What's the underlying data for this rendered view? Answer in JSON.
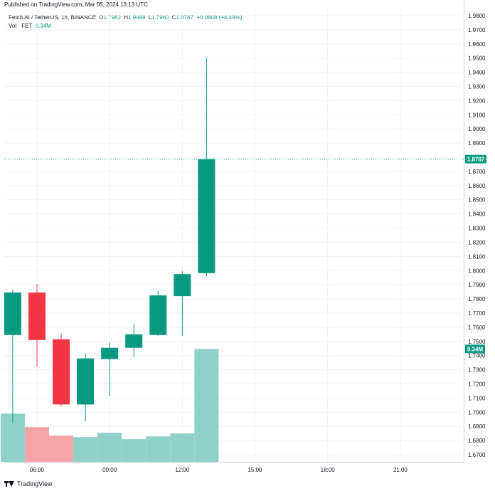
{
  "header": {
    "published": "Published on TradingView.com, Mar 05, 2024 13:13 UTC"
  },
  "legend": {
    "symbol": "Fetch.AI / TetherUS, 1h, BINANCE",
    "open_label": "O",
    "open_value": "1.7982",
    "high_label": "H",
    "high_value": "1.9499",
    "low_label": "L",
    "low_value": "1.7960",
    "close_label": "C",
    "close_value": "1.8787",
    "change": "+0.0808 (+4.49%)",
    "vol_label": "Vol · FET",
    "vol_value": "9.34M"
  },
  "footer": {
    "brand": "TradingView"
  },
  "colors": {
    "up": "#089981",
    "down": "#f23645",
    "vol_up": "#8fd1c9",
    "vol_down": "#f7a4a9",
    "grid": "#f0f3fa",
    "text": "#131722"
  },
  "chart_data": {
    "type": "candlestick",
    "ylim": [
      1.665,
      1.985
    ],
    "y_ticks": [
      "1.6700",
      "1.6800",
      "1.6900",
      "1.7000",
      "1.7100",
      "1.7200",
      "1.7300",
      "1.7400",
      "1.7500",
      "1.7600",
      "1.7700",
      "1.7800",
      "1.7900",
      "1.8000",
      "1.8100",
      "1.8200",
      "1.8300",
      "1.8400",
      "1.8500",
      "1.8600",
      "1.8700",
      "1.8800",
      "1.8900",
      "1.9000",
      "1.9100",
      "1.9200",
      "1.9300",
      "1.9400",
      "1.9500",
      "1.9600",
      "1.9700",
      "1.9800"
    ],
    "x_ticks": [
      "06:00",
      "09:00",
      "12:00",
      "15:00",
      "18:00",
      "21:00"
    ],
    "x_tick_hours": [
      6,
      9,
      12,
      15,
      18,
      21
    ],
    "x_range_hours": [
      4.65,
      23.5
    ],
    "last_price_label": "1.8787",
    "last_price": 1.8787,
    "volume_label": "9.34M",
    "volume_label_price": 1.7447,
    "candles": [
      {
        "hour": 5,
        "open": 1.7545,
        "high": 1.7865,
        "low": 1.6925,
        "close": 1.7845
      },
      {
        "hour": 6,
        "open": 1.7845,
        "high": 1.7905,
        "low": 1.7325,
        "close": 1.751
      },
      {
        "hour": 7,
        "open": 1.7515,
        "high": 1.7555,
        "low": 1.7045,
        "close": 1.7055
      },
      {
        "hour": 8,
        "open": 1.7055,
        "high": 1.7415,
        "low": 1.6935,
        "close": 1.738
      },
      {
        "hour": 9,
        "open": 1.7375,
        "high": 1.7495,
        "low": 1.7115,
        "close": 1.7455
      },
      {
        "hour": 10,
        "open": 1.7455,
        "high": 1.762,
        "low": 1.739,
        "close": 1.755
      },
      {
        "hour": 11,
        "open": 1.7545,
        "high": 1.7855,
        "low": 1.754,
        "close": 1.7825
      },
      {
        "hour": 12,
        "open": 1.782,
        "high": 1.7995,
        "low": 1.754,
        "close": 1.7975
      },
      {
        "hour": 13,
        "open": 1.7982,
        "high": 1.9499,
        "low": 1.796,
        "close": 1.8787
      }
    ],
    "volume_bar_prices": [
      1.699,
      1.6895,
      1.6835,
      1.6825,
      1.6855,
      1.681,
      1.683,
      1.685,
      1.7447
    ]
  }
}
